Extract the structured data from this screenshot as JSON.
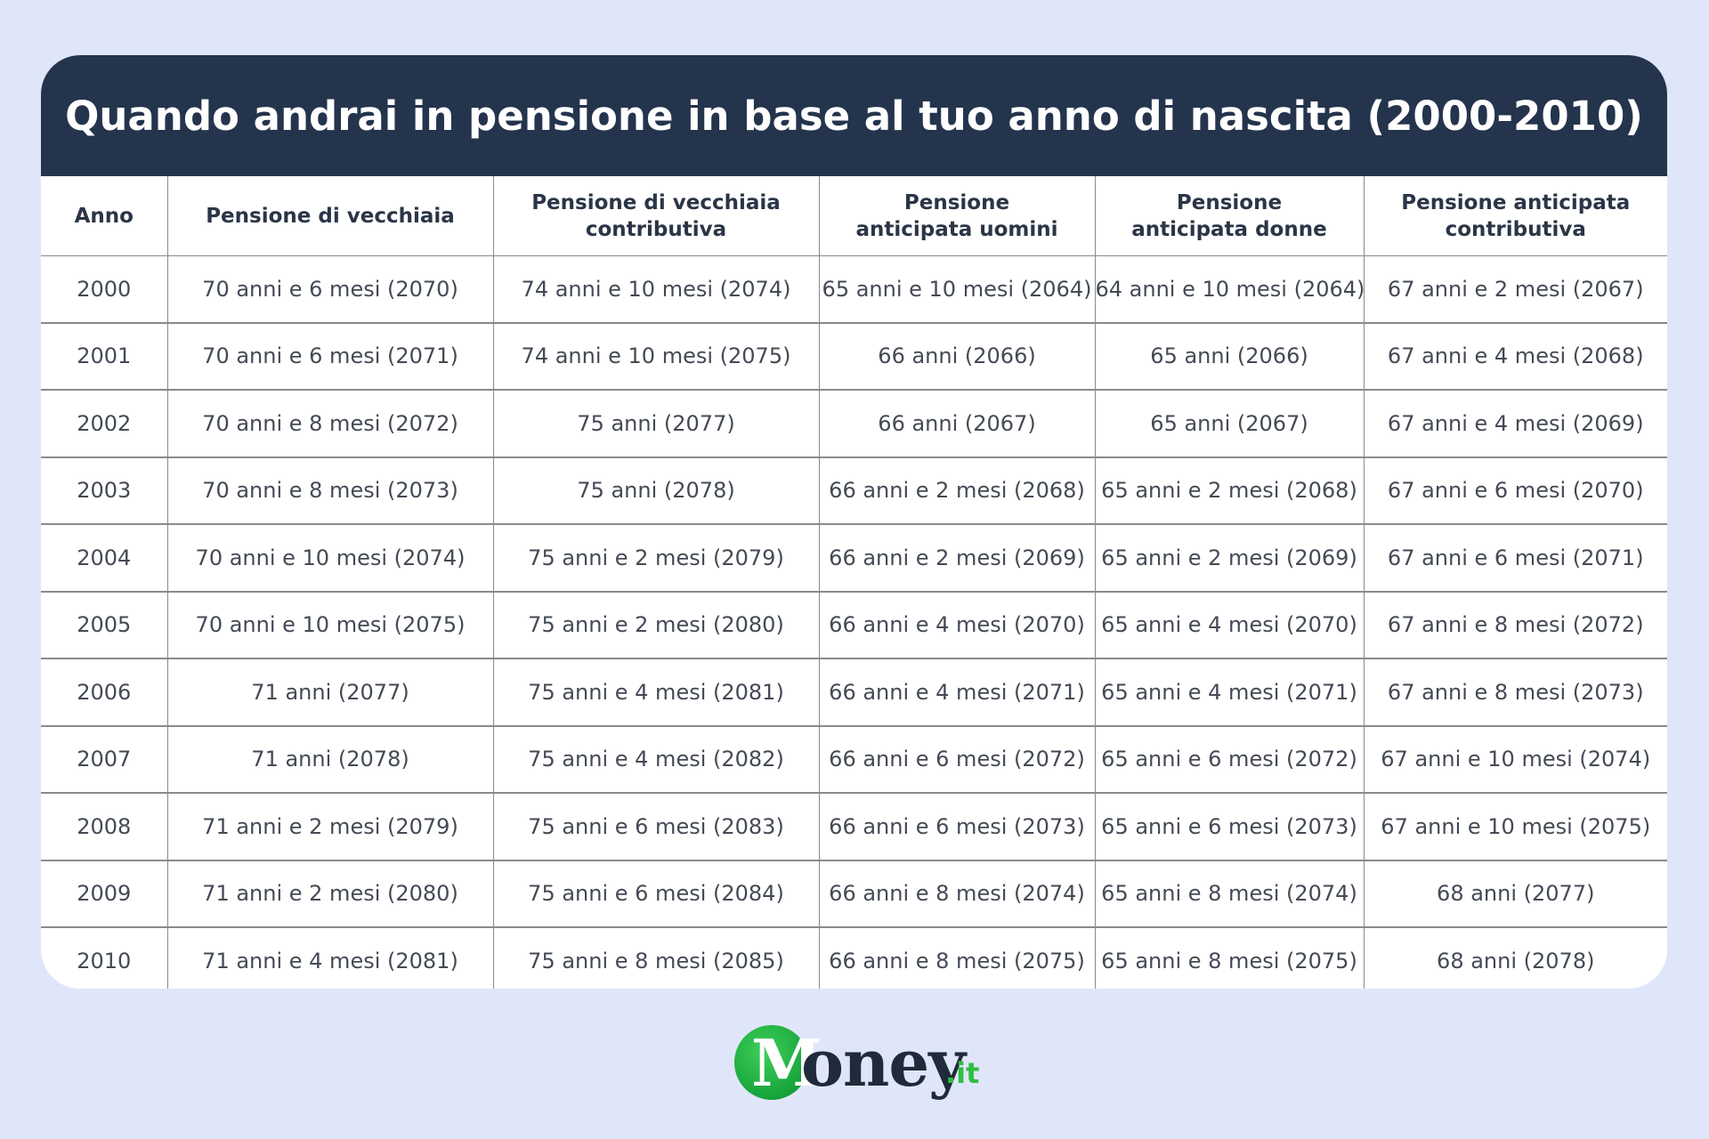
{
  "title": "Quando andrai in pensione in base al tuo anno di nascita (2000-2010)",
  "columns": [
    "Anno",
    "Pensione di vecchiaia",
    "Pensione di vecchiaia contributiva",
    "Pensione anticipata uomini",
    "Pensione anticipata donne",
    "Pensione anticipata contributiva"
  ],
  "rows": [
    [
      "2000",
      "70 anni e 6 mesi (2070)",
      "74 anni e 10 mesi (2074)",
      "65 anni e 10 mesi (2064)",
      "64 anni e 10 mesi (2064)",
      "67 anni e 2 mesi (2067)"
    ],
    [
      "2001",
      "70 anni e 6 mesi (2071)",
      "74 anni e 10 mesi (2075)",
      "66 anni (2066)",
      "65 anni (2066)",
      "67 anni e 4 mesi (2068)"
    ],
    [
      "2002",
      "70 anni e 8 mesi (2072)",
      "75 anni (2077)",
      "66 anni (2067)",
      "65 anni (2067)",
      "67 anni e 4 mesi (2069)"
    ],
    [
      "2003",
      "70 anni e 8 mesi (2073)",
      "75 anni (2078)",
      "66 anni e 2 mesi (2068)",
      "65 anni e 2 mesi (2068)",
      "67 anni e 6 mesi (2070)"
    ],
    [
      "2004",
      "70 anni e 10 mesi (2074)",
      "75 anni e 2 mesi (2079)",
      "66 anni e 2 mesi (2069)",
      "65 anni e 2 mesi (2069)",
      "67 anni e 6 mesi (2071)"
    ],
    [
      "2005",
      "70 anni e 10 mesi (2075)",
      "75 anni e 2 mesi (2080)",
      "66 anni e 4 mesi (2070)",
      "65 anni e 4 mesi (2070)",
      "67 anni e 8 mesi (2072)"
    ],
    [
      "2006",
      "71 anni (2077)",
      "75 anni e 4 mesi (2081)",
      "66 anni e 4 mesi (2071)",
      "65 anni e 4 mesi (2071)",
      "67 anni e 8 mesi (2073)"
    ],
    [
      "2007",
      "71 anni (2078)",
      "75 anni e 4 mesi (2082)",
      "66 anni e 6 mesi (2072)",
      "65 anni e 6 mesi (2072)",
      "67 anni e 10 mesi (2074)"
    ],
    [
      "2008",
      "71 anni e 2 mesi (2079)",
      "75 anni e 6 mesi (2083)",
      "66 anni e 6 mesi (2073)",
      "65 anni e 6 mesi (2073)",
      "67 anni e 10 mesi (2075)"
    ],
    [
      "2009",
      "71 anni e 2 mesi (2080)",
      "75 anni e 6 mesi (2084)",
      "66 anni e 8 mesi (2074)",
      "65 anni e 8 mesi (2074)",
      "68 anni (2077)"
    ],
    [
      "2010",
      "71 anni e 4 mesi (2081)",
      "75 anni e 8 mesi (2085)",
      "66 anni e 8 mesi (2075)",
      "65 anni e 8 mesi (2075)",
      "68 anni (2078)"
    ]
  ],
  "logo": {
    "initial": "M",
    "word": "oney",
    "tld": ".it"
  },
  "colors": {
    "background": "#e0e6f9",
    "header": "#24344d",
    "logo_green": "#16a33a"
  }
}
